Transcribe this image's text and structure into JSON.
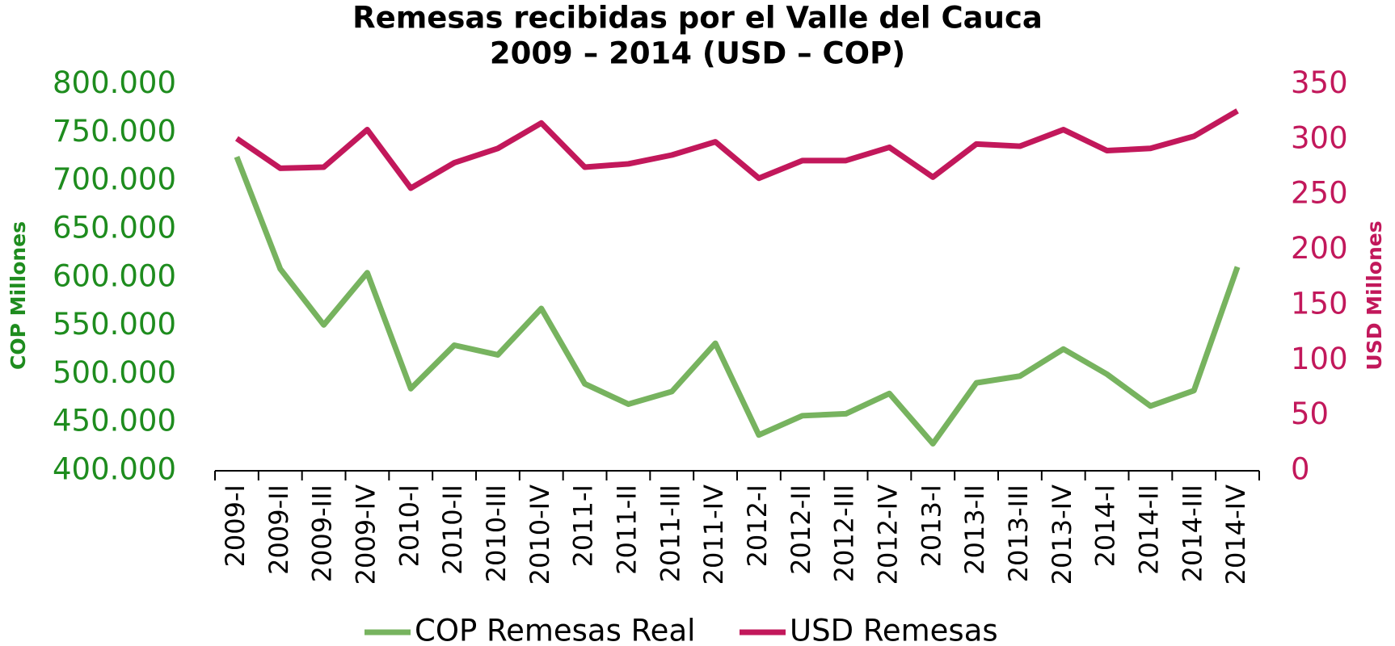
{
  "chart_data": {
    "type": "line",
    "title": "Remesas recibidas por el Valle del Cauca",
    "subtitle": "2009 – 2014 (USD – COP)",
    "ylabel": "COP Millones",
    "y2label": "USD Millones",
    "categories": [
      "2009-I",
      "2009-II",
      "2009-III",
      "2009-IV",
      "2010-I",
      "2010-II",
      "2010-III",
      "2010-IV",
      "2011-I",
      "2011-II",
      "2011-III",
      "2011-IV",
      "2012-I",
      "2012-II",
      "2012-III",
      "2012-IV",
      "2013-I",
      "2013-II",
      "2013-III",
      "2013-IV",
      "2014-I",
      "2014-II",
      "2014-III",
      "2014-IV"
    ],
    "series": [
      {
        "name": "COP Remesas Real",
        "color": "#77b35f",
        "values": [
          725000,
          609000,
          551000,
          605000,
          485000,
          530000,
          520000,
          568000,
          490000,
          469000,
          482000,
          532000,
          437000,
          457000,
          459000,
          480000,
          428000,
          491000,
          498000,
          526000,
          500000,
          467000,
          483000,
          611000
        ]
      },
      {
        "name": "USD Remesas",
        "color": "#c2185b",
        "axis": "y2",
        "values": [
          301,
          274,
          275,
          309,
          256,
          279,
          292,
          315,
          275,
          278,
          286,
          298,
          265,
          281,
          281,
          293,
          266,
          296,
          294,
          309,
          290,
          292,
          303,
          326
        ]
      }
    ],
    "ylim": [
      400000,
      800000
    ],
    "yticks": [
      {
        "value": 400000,
        "label": "400.000"
      },
      {
        "value": 450000,
        "label": "450.000"
      },
      {
        "value": 500000,
        "label": "500.000"
      },
      {
        "value": 550000,
        "label": "550.000"
      },
      {
        "value": 600000,
        "label": "600.000"
      },
      {
        "value": 650000,
        "label": "650.000"
      },
      {
        "value": 700000,
        "label": "700.000"
      },
      {
        "value": 750000,
        "label": "750.000"
      },
      {
        "value": 800000,
        "label": "800.000"
      }
    ],
    "y2lim": [
      0,
      350
    ],
    "y2ticks": [
      0,
      50,
      100,
      150,
      200,
      250,
      300,
      350
    ],
    "y_axis_color": "#1e8c1e",
    "y2_axis_color": "#c2185b",
    "grid": false,
    "legend": "bottom"
  }
}
